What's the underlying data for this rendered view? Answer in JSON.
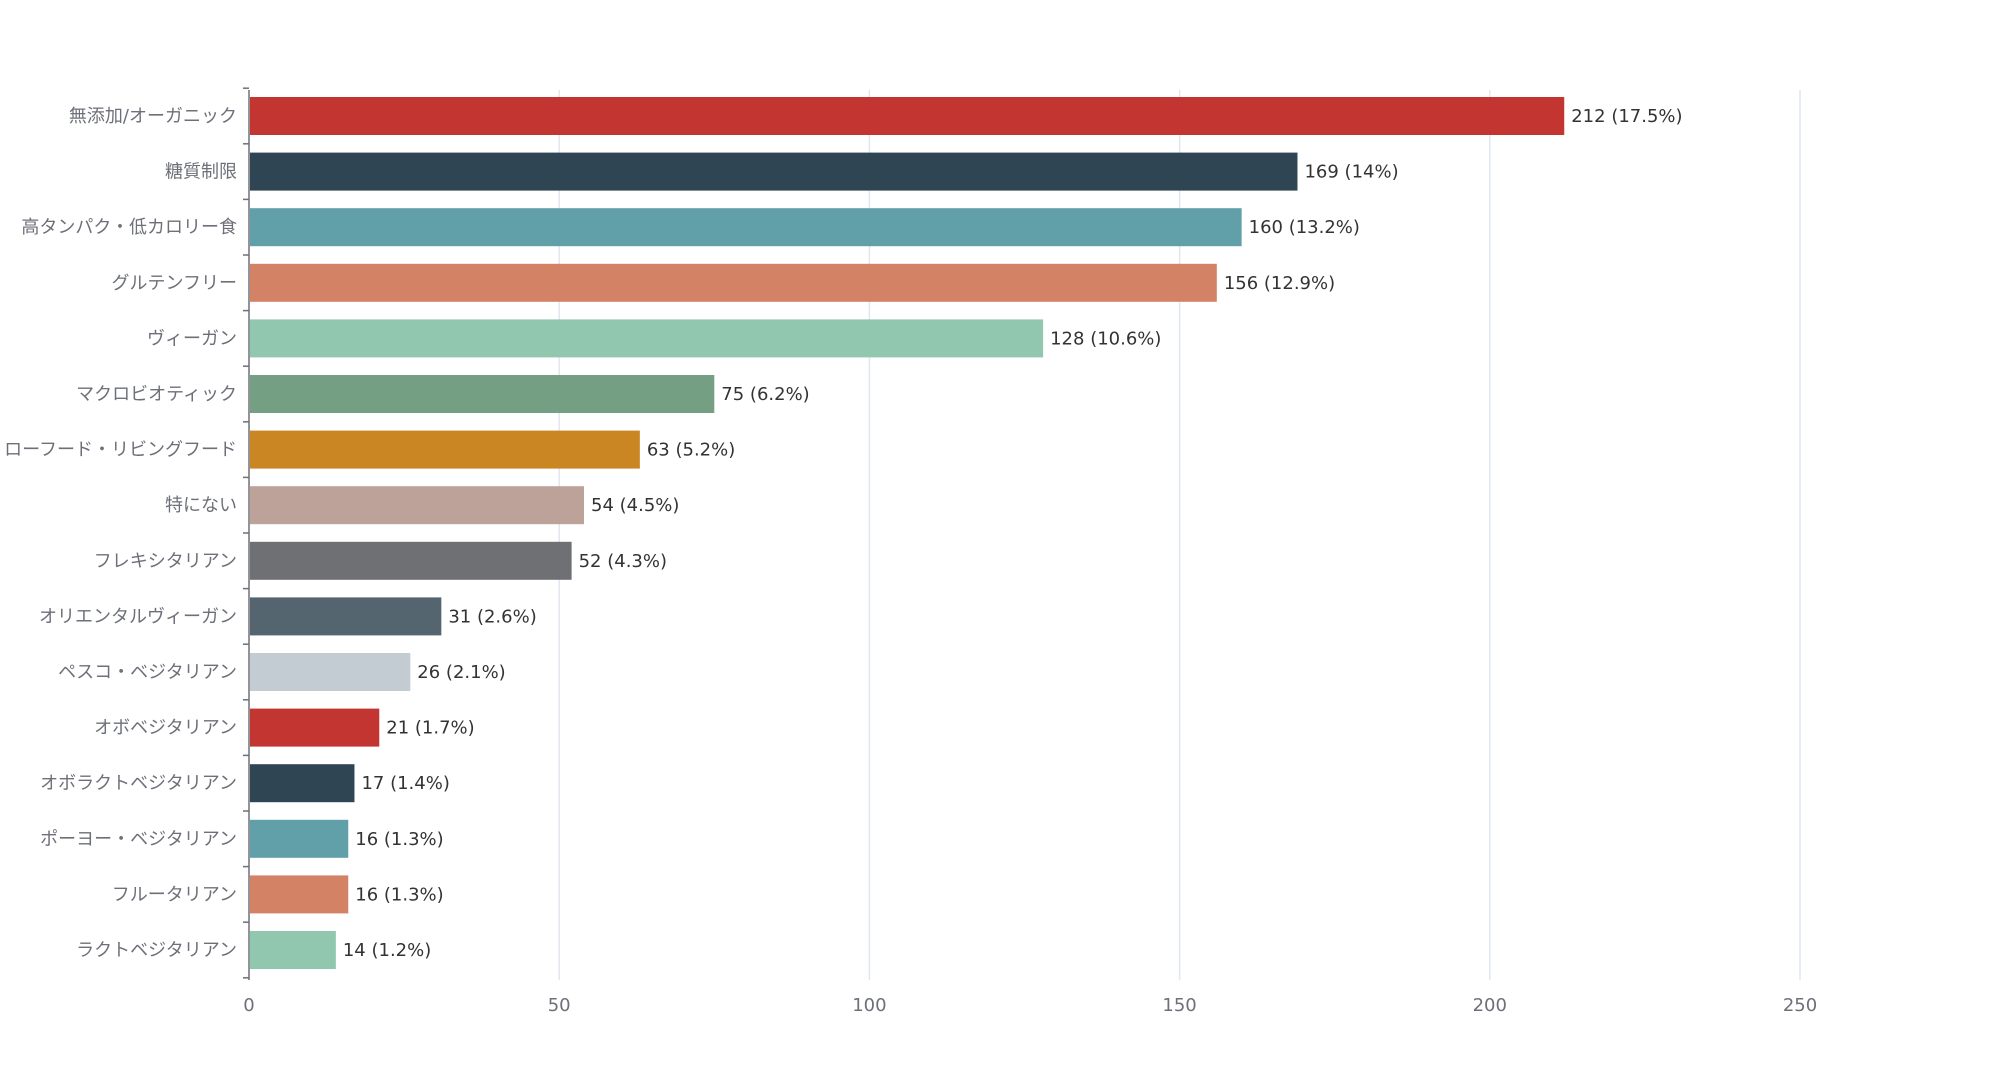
{
  "chart_data": {
    "type": "bar",
    "orientation": "horizontal",
    "categories": [
      "無添加/オーガニック",
      "糖質制限",
      "高タンパク・低カロリー食",
      "グルテンフリー",
      "ヴィーガン",
      "マクロビオティック",
      "ローフード・リビングフード",
      "特にない",
      "フレキシタリアン",
      "オリエンタルヴィーガン",
      "ペスコ・ベジタリアン",
      "オボベジタリアン",
      "オボラクトベジタリアン",
      "ポーヨー・ベジタリアン",
      "フルータリアン",
      "ラクトベジタリアン"
    ],
    "values": [
      212,
      169,
      160,
      156,
      128,
      75,
      63,
      54,
      52,
      31,
      26,
      21,
      17,
      16,
      16,
      14
    ],
    "value_labels": [
      "212 (17.5%)",
      "169 (14%)",
      "160 (13.2%)",
      "156 (12.9%)",
      "128 (10.6%)",
      "75 (6.2%)",
      "63 (5.2%)",
      "54 (4.5%)",
      "52 (4.3%)",
      "31 (2.6%)",
      "26 (2.1%)",
      "21 (1.7%)",
      "17 (1.4%)",
      "16 (1.3%)",
      "16 (1.3%)",
      "14 (1.2%)"
    ],
    "colors": [
      "#c23531",
      "#2f4554",
      "#61a0a8",
      "#d48265",
      "#91c7ae",
      "#749f83",
      "#ca8622",
      "#bda29a",
      "#6e7074",
      "#546570",
      "#c4ccd3",
      "#c23531",
      "#2f4554",
      "#61a0a8",
      "#d48265",
      "#91c7ae"
    ],
    "xlim": [
      0,
      250
    ],
    "xticks": [
      "0",
      "50",
      "100",
      "150",
      "200",
      "250"
    ],
    "title": "",
    "xlabel": "",
    "ylabel": "",
    "grid": "vertical",
    "legend": "none"
  }
}
